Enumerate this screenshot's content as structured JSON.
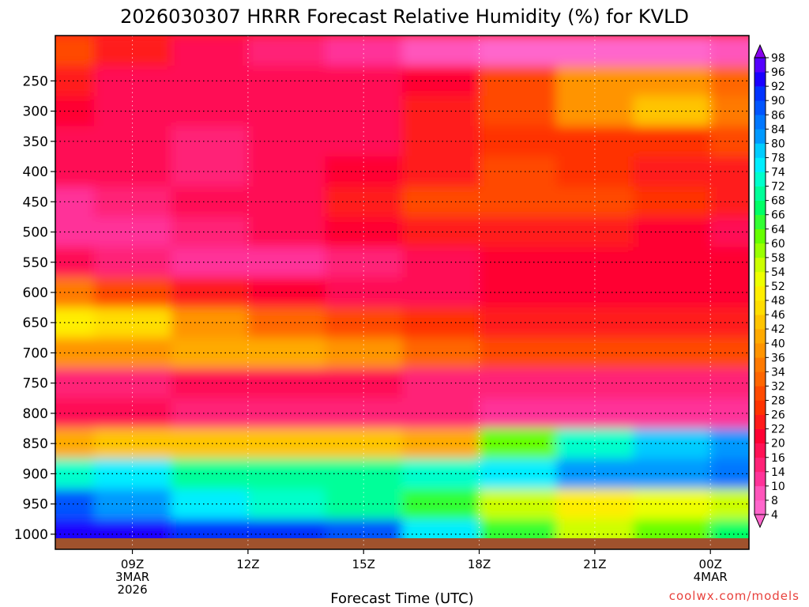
{
  "chart_data": {
    "type": "heatmap",
    "title": "2026030307 HRRR Forecast Relative Humidity (%) for KVLD",
    "xlabel": "Forecast Time (UTC)",
    "ylabel": "",
    "watermark": "coolwx.com/models",
    "x_range_hours": [
      7,
      25
    ],
    "y_range_hpa": [
      1025,
      175
    ],
    "x_ticks": [
      {
        "hour": 9,
        "label": "09Z",
        "sub1": "3MAR",
        "sub2": "2026"
      },
      {
        "hour": 12,
        "label": "12Z",
        "sub1": "",
        "sub2": ""
      },
      {
        "hour": 15,
        "label": "15Z",
        "sub1": "",
        "sub2": ""
      },
      {
        "hour": 18,
        "label": "18Z",
        "sub1": "",
        "sub2": ""
      },
      {
        "hour": 21,
        "label": "21Z",
        "sub1": "",
        "sub2": ""
      },
      {
        "hour": 24,
        "label": "00Z",
        "sub1": "4MAR",
        "sub2": ""
      }
    ],
    "y_ticks": [
      250,
      300,
      350,
      400,
      450,
      500,
      550,
      600,
      650,
      700,
      750,
      800,
      850,
      900,
      950,
      1000
    ],
    "colorbar_levels": [
      4,
      8,
      10,
      14,
      16,
      20,
      22,
      26,
      28,
      32,
      34,
      36,
      40,
      42,
      46,
      48,
      52,
      54,
      58,
      60,
      64,
      66,
      68,
      72,
      74,
      78,
      80,
      84,
      86,
      90,
      92,
      96,
      98
    ],
    "colorbar_colors": [
      "#ff66cc",
      "#ff55bb",
      "#ff3399",
      "#ff2277",
      "#ff1155",
      "#ff0033",
      "#ff1a1a",
      "#ff3300",
      "#ff4a00",
      "#ff6600",
      "#ff7a00",
      "#ff9400",
      "#ffaa00",
      "#ffc400",
      "#ffdd00",
      "#ffee00",
      "#eeff00",
      "#ccff00",
      "#99ff00",
      "#66ff00",
      "#33ff33",
      "#00ff66",
      "#00ff99",
      "#00ffcc",
      "#00eeff",
      "#00ccff",
      "#0099ff",
      "#0077ff",
      "#0055ff",
      "#0033ff",
      "#1a00ff",
      "#5500ff",
      "#8800ee"
    ],
    "time_hours": [
      7,
      9,
      11,
      13,
      15,
      17,
      19,
      21,
      23,
      25
    ],
    "pressure_levels_hpa": [
      200,
      250,
      300,
      350,
      400,
      450,
      500,
      550,
      600,
      650,
      700,
      750,
      800,
      850,
      900,
      950,
      1000
    ],
    "rh_percent": [
      [
        28,
        22,
        18,
        14,
        10,
        8,
        6,
        6,
        6,
        8
      ],
      [
        22,
        18,
        16,
        16,
        18,
        20,
        28,
        38,
        38,
        32
      ],
      [
        20,
        18,
        16,
        16,
        18,
        22,
        28,
        36,
        42,
        34
      ],
      [
        18,
        16,
        14,
        16,
        18,
        22,
        26,
        26,
        26,
        30
      ],
      [
        18,
        16,
        14,
        16,
        20,
        24,
        28,
        26,
        24,
        24
      ],
      [
        12,
        14,
        16,
        18,
        24,
        28,
        30,
        28,
        26,
        24
      ],
      [
        10,
        12,
        14,
        16,
        20,
        24,
        24,
        22,
        20,
        18
      ],
      [
        16,
        14,
        12,
        12,
        14,
        18,
        20,
        20,
        20,
        20
      ],
      [
        34,
        30,
        24,
        20,
        18,
        18,
        20,
        20,
        20,
        20
      ],
      [
        48,
        46,
        38,
        32,
        28,
        26,
        24,
        24,
        24,
        24
      ],
      [
        36,
        38,
        40,
        40,
        36,
        32,
        30,
        30,
        30,
        28
      ],
      [
        14,
        14,
        16,
        16,
        16,
        14,
        14,
        14,
        14,
        14
      ],
      [
        18,
        16,
        14,
        14,
        14,
        14,
        12,
        10,
        10,
        10
      ],
      [
        40,
        42,
        44,
        44,
        42,
        40,
        60,
        72,
        78,
        80
      ],
      [
        72,
        74,
        70,
        68,
        70,
        72,
        76,
        80,
        82,
        84
      ],
      [
        86,
        82,
        76,
        72,
        68,
        64,
        56,
        50,
        52,
        56
      ],
      [
        92,
        92,
        90,
        90,
        86,
        76,
        64,
        56,
        60,
        66
      ]
    ]
  }
}
